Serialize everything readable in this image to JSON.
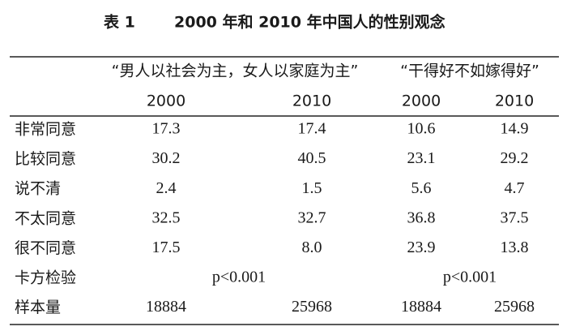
{
  "header": {
    "label": "表 1",
    "title": "2000 年和 2010 年中国人的性别观念"
  },
  "table": {
    "group_headers": [
      "“男人以社会为主，女人以家庭为主”",
      "“干得好不如嫁得好”"
    ],
    "years": [
      "2000",
      "2010",
      "2000",
      "2010"
    ],
    "rows": [
      {
        "label": "非常同意",
        "cells": [
          "17.3",
          "17.4",
          "10.6",
          "14.9"
        ]
      },
      {
        "label": "比较同意",
        "cells": [
          "30.2",
          "40.5",
          "23.1",
          "29.2"
        ]
      },
      {
        "label": "说不清",
        "cells": [
          "2.4",
          "1.5",
          "5.6",
          "4.7"
        ]
      },
      {
        "label": "不太同意",
        "cells": [
          "32.5",
          "32.7",
          "36.8",
          "37.5"
        ]
      },
      {
        "label": "很不同意",
        "cells": [
          "17.5",
          "8.0",
          "23.9",
          "13.8"
        ]
      },
      {
        "label": "卡方检验",
        "spans": [
          "p<0.001",
          "p<0.001"
        ]
      },
      {
        "label": "样本量",
        "cells": [
          "18884",
          "25968",
          "18884",
          "25968"
        ]
      }
    ]
  }
}
